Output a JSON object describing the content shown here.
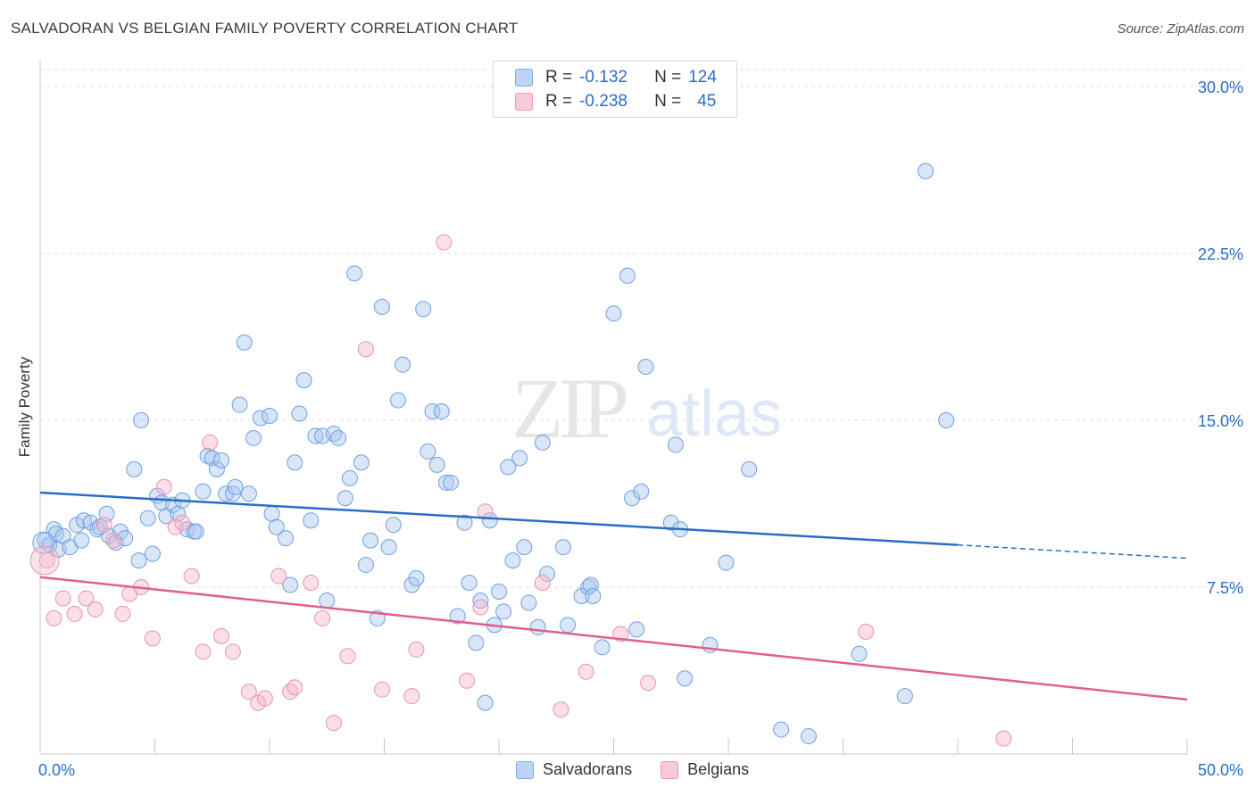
{
  "header": {
    "title": "SALVADORAN VS BELGIAN FAMILY POVERTY CORRELATION CHART",
    "source": "Source: ZipAtlas.com"
  },
  "legend": {
    "rows": [
      {
        "r_label": "R =",
        "r_value": "-0.132",
        "n_label": "N =",
        "n_value": "124",
        "color": "#a9c8f0"
      },
      {
        "r_label": "R =",
        "r_value": "-0.238",
        "n_label": "N =",
        "n_value": "45",
        "color": "#f5b8cb"
      }
    ]
  },
  "bottom_legend": {
    "items": [
      {
        "label": "Salvadorans",
        "color": "#a9c8f0"
      },
      {
        "label": "Belgians",
        "color": "#f5b8cb"
      }
    ]
  },
  "watermark": {
    "zip": "ZIP",
    "atlas": "atlas"
  },
  "chart_data": {
    "type": "scatter",
    "title": "SALVADORAN VS BELGIAN FAMILY POVERTY CORRELATION CHART",
    "xlabel": "",
    "ylabel": "Family Poverty",
    "xlim": [
      0,
      50
    ],
    "ylim": [
      0,
      30
    ],
    "x_tick_labels": [
      "0.0%",
      "50.0%"
    ],
    "y_ticks": [
      7.5,
      15.0,
      22.5,
      30.0
    ],
    "y_tick_labels": [
      "7.5%",
      "15.0%",
      "22.5%",
      "30.0%"
    ],
    "grid": "horizontal dashed",
    "legend_position": "top-center",
    "colors": {
      "salvadorans": "#2a6dc9",
      "belgians": "#e0608c"
    },
    "series": [
      {
        "name": "Salvadorans",
        "color": "#a9c8f0",
        "trend": {
          "x": [
            0,
            40,
            50
          ],
          "y": [
            11.75,
            9.4,
            8.8
          ],
          "solid_until": 40
        },
        "points": [
          [
            0.2,
            9.6
          ],
          [
            0.4,
            9.4
          ],
          [
            0.6,
            10.1
          ],
          [
            0.7,
            9.9
          ],
          [
            0.8,
            9.2
          ],
          [
            1.0,
            9.8
          ],
          [
            1.3,
            9.3
          ],
          [
            1.6,
            10.3
          ],
          [
            1.8,
            9.6
          ],
          [
            1.9,
            10.5
          ],
          [
            2.2,
            10.4
          ],
          [
            2.5,
            10.1
          ],
          [
            2.6,
            10.2
          ],
          [
            2.9,
            10.8
          ],
          [
            3.0,
            9.8
          ],
          [
            3.3,
            9.5
          ],
          [
            3.5,
            10.0
          ],
          [
            3.7,
            9.7
          ],
          [
            4.1,
            12.8
          ],
          [
            4.3,
            8.7
          ],
          [
            4.4,
            15.0
          ],
          [
            4.7,
            10.6
          ],
          [
            4.9,
            9.0
          ],
          [
            5.1,
            11.6
          ],
          [
            5.3,
            11.3
          ],
          [
            5.5,
            10.7
          ],
          [
            5.8,
            11.2
          ],
          [
            6.0,
            10.8
          ],
          [
            6.2,
            11.4
          ],
          [
            6.4,
            10.1
          ],
          [
            6.7,
            10.0
          ],
          [
            6.8,
            10.0
          ],
          [
            7.1,
            11.8
          ],
          [
            7.3,
            13.4
          ],
          [
            7.5,
            13.3
          ],
          [
            7.7,
            12.8
          ],
          [
            7.9,
            13.2
          ],
          [
            8.1,
            11.7
          ],
          [
            8.4,
            11.7
          ],
          [
            8.5,
            12.0
          ],
          [
            8.7,
            15.7
          ],
          [
            8.9,
            18.5
          ],
          [
            9.1,
            11.7
          ],
          [
            9.3,
            14.2
          ],
          [
            9.6,
            15.1
          ],
          [
            10.0,
            15.2
          ],
          [
            10.1,
            10.8
          ],
          [
            10.3,
            10.2
          ],
          [
            10.7,
            9.7
          ],
          [
            10.9,
            7.6
          ],
          [
            11.1,
            13.1
          ],
          [
            11.3,
            15.3
          ],
          [
            11.5,
            16.8
          ],
          [
            11.8,
            10.5
          ],
          [
            12.0,
            14.3
          ],
          [
            12.3,
            14.3
          ],
          [
            12.5,
            6.9
          ],
          [
            12.8,
            14.4
          ],
          [
            13.0,
            14.2
          ],
          [
            13.3,
            11.5
          ],
          [
            13.5,
            12.4
          ],
          [
            13.7,
            21.6
          ],
          [
            14.0,
            13.1
          ],
          [
            14.2,
            8.5
          ],
          [
            14.4,
            9.6
          ],
          [
            14.7,
            6.1
          ],
          [
            14.9,
            20.1
          ],
          [
            15.2,
            9.3
          ],
          [
            15.4,
            10.3
          ],
          [
            15.6,
            15.9
          ],
          [
            15.8,
            17.5
          ],
          [
            16.2,
            7.6
          ],
          [
            16.4,
            7.9
          ],
          [
            16.7,
            20.0
          ],
          [
            16.9,
            13.6
          ],
          [
            17.1,
            15.4
          ],
          [
            17.3,
            13.0
          ],
          [
            17.5,
            15.4
          ],
          [
            17.7,
            12.2
          ],
          [
            17.9,
            12.2
          ],
          [
            18.2,
            6.2
          ],
          [
            18.5,
            10.4
          ],
          [
            18.7,
            7.7
          ],
          [
            19.0,
            5.0
          ],
          [
            19.2,
            6.9
          ],
          [
            19.4,
            2.3
          ],
          [
            19.6,
            10.5
          ],
          [
            19.8,
            5.8
          ],
          [
            20.0,
            7.3
          ],
          [
            20.2,
            6.4
          ],
          [
            20.4,
            12.9
          ],
          [
            20.6,
            8.7
          ],
          [
            20.9,
            13.3
          ],
          [
            21.1,
            9.3
          ],
          [
            21.3,
            6.8
          ],
          [
            21.7,
            5.7
          ],
          [
            21.9,
            14.0
          ],
          [
            22.1,
            8.1
          ],
          [
            22.8,
            9.3
          ],
          [
            23.0,
            5.8
          ],
          [
            23.6,
            7.1
          ],
          [
            23.9,
            7.5
          ],
          [
            24.0,
            7.6
          ],
          [
            24.1,
            7.1
          ],
          [
            24.5,
            4.8
          ],
          [
            25.0,
            19.8
          ],
          [
            25.6,
            21.5
          ],
          [
            25.8,
            11.5
          ],
          [
            26.0,
            5.6
          ],
          [
            26.2,
            11.8
          ],
          [
            26.4,
            17.4
          ],
          [
            27.5,
            10.4
          ],
          [
            27.7,
            13.9
          ],
          [
            27.9,
            10.1
          ],
          [
            28.1,
            3.4
          ],
          [
            29.2,
            4.9
          ],
          [
            29.9,
            8.6
          ],
          [
            30.9,
            12.8
          ],
          [
            32.3,
            1.1
          ],
          [
            33.5,
            0.8
          ],
          [
            35.7,
            4.5
          ],
          [
            37.7,
            2.6
          ],
          [
            38.6,
            26.2
          ],
          [
            39.5,
            15.0
          ]
        ]
      },
      {
        "name": "Belgians",
        "color": "#f5b8cb",
        "trend": {
          "x": [
            0,
            50
          ],
          "y": [
            7.95,
            2.45
          ],
          "solid_until": 50
        },
        "points": [
          [
            0.3,
            8.7
          ],
          [
            0.6,
            6.1
          ],
          [
            1.0,
            7.0
          ],
          [
            1.5,
            6.3
          ],
          [
            2.0,
            7.0
          ],
          [
            2.4,
            6.5
          ],
          [
            2.8,
            10.3
          ],
          [
            3.2,
            9.6
          ],
          [
            3.6,
            6.3
          ],
          [
            3.9,
            7.2
          ],
          [
            4.4,
            7.5
          ],
          [
            4.9,
            5.2
          ],
          [
            5.4,
            12.0
          ],
          [
            5.9,
            10.2
          ],
          [
            6.2,
            10.4
          ],
          [
            6.6,
            8.0
          ],
          [
            7.1,
            4.6
          ],
          [
            7.4,
            14.0
          ],
          [
            7.9,
            5.3
          ],
          [
            8.4,
            4.6
          ],
          [
            9.1,
            2.8
          ],
          [
            9.5,
            2.3
          ],
          [
            9.8,
            2.5
          ],
          [
            10.4,
            8.0
          ],
          [
            10.9,
            2.8
          ],
          [
            11.1,
            3.0
          ],
          [
            11.8,
            7.7
          ],
          [
            12.3,
            6.1
          ],
          [
            12.8,
            1.4
          ],
          [
            13.4,
            4.4
          ],
          [
            14.2,
            18.2
          ],
          [
            14.9,
            2.9
          ],
          [
            16.2,
            2.6
          ],
          [
            16.4,
            4.7
          ],
          [
            17.6,
            23.0
          ],
          [
            18.6,
            3.3
          ],
          [
            19.2,
            6.6
          ],
          [
            19.4,
            10.9
          ],
          [
            21.9,
            7.7
          ],
          [
            22.7,
            2.0
          ],
          [
            23.8,
            3.7
          ],
          [
            25.3,
            5.4
          ],
          [
            26.5,
            3.2
          ],
          [
            36.0,
            5.5
          ],
          [
            42.0,
            0.7
          ]
        ]
      }
    ]
  }
}
